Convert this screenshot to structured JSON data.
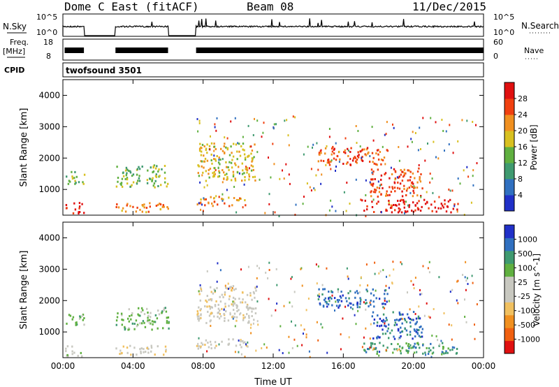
{
  "header": {
    "station": "Dome C East (fitACF)",
    "beam": "Beam 08",
    "date": "11/Dec/2015"
  },
  "strip_labels": {
    "nsky": "N.Sky",
    "nsky_ticks": [
      "10^5",
      "10^0"
    ],
    "nsearch": "N.Search",
    "nsearch_ticks": [
      "10^5",
      "10^0"
    ],
    "freq_title": "Freq.",
    "freq_unit": "[MHz]",
    "freq_ticks": [
      "18",
      "8"
    ],
    "nave": "Nave",
    "nave_ticks": [
      "60",
      "0"
    ],
    "cpid": "CPID",
    "cpid_value": "twofsound 3501"
  },
  "colors": {
    "power": [
      "#2030c8",
      "#3070c0",
      "#3f9a70",
      "#60b040",
      "#d8c020",
      "#f09020",
      "#f04010",
      "#e01010"
    ],
    "velocity": [
      "#e01010",
      "#f06010",
      "#f09020",
      "#f0c060",
      "#c8c8c0",
      "#c8c8c0",
      "#60b040",
      "#3f9a70",
      "#3070c0",
      "#2030c8"
    ]
  },
  "chart_data": [
    {
      "type": "heatmap",
      "name": "power",
      "xlabel": "Time UT",
      "ylabel": "Slant Range [km]",
      "colorbar_label": "Power [dB]",
      "colorbar_ticks": [
        "28",
        "24",
        "20",
        "16",
        "12",
        "8",
        "4"
      ],
      "xlim": [
        0,
        24
      ],
      "ylim": [
        180,
        4500
      ],
      "xticks": [
        "00:00",
        "04:00",
        "08:00",
        "12:00",
        "16:00",
        "20:00",
        "00:00"
      ],
      "yticks": [
        "1000",
        "2000",
        "3000",
        "4000"
      ],
      "data_gaps_hours": [
        [
          1.2,
          3.0
        ],
        [
          6.0,
          7.6
        ]
      ],
      "echo_regions": [
        {
          "t": [
            0.1,
            1.2
          ],
          "range": [
            250,
            600
          ],
          "level": "28"
        },
        {
          "t": [
            0.1,
            1.2
          ],
          "range": [
            1200,
            1600
          ],
          "level": "12"
        },
        {
          "t": [
            3.0,
            6.0
          ],
          "range": [
            300,
            600
          ],
          "level": "20"
        },
        {
          "t": [
            3.0,
            6.0
          ],
          "range": [
            1100,
            1800
          ],
          "level": "12"
        },
        {
          "t": [
            7.6,
            10.5
          ],
          "range": [
            500,
            800
          ],
          "level": "20"
        },
        {
          "t": [
            7.6,
            11.0
          ],
          "range": [
            1300,
            2500
          ],
          "level": "16"
        },
        {
          "t": [
            14.5,
            18.5
          ],
          "range": [
            1800,
            2400
          ],
          "level": "24"
        },
        {
          "t": [
            17.0,
            22.5
          ],
          "range": [
            300,
            700
          ],
          "level": "28"
        },
        {
          "t": [
            17.5,
            20.5
          ],
          "range": [
            800,
            1700
          ],
          "level": "24"
        }
      ]
    },
    {
      "type": "heatmap",
      "name": "velocity",
      "xlabel": "Time UT",
      "ylabel": "Slant Range [km]",
      "colorbar_label": "Velocity [m s^-1]",
      "colorbar_ticks": [
        "1000",
        "500",
        "100",
        "25",
        "-25",
        "-100",
        "-500",
        "-1000"
      ],
      "xlim": [
        0,
        24
      ],
      "ylim": [
        180,
        4500
      ],
      "xticks": [
        "00:00",
        "04:00",
        "08:00",
        "12:00",
        "16:00",
        "20:00",
        "00:00"
      ],
      "yticks": [
        "1000",
        "2000",
        "3000",
        "4000"
      ],
      "data_gaps_hours": [
        [
          1.2,
          3.0
        ],
        [
          6.0,
          7.6
        ]
      ],
      "echo_regions": [
        {
          "t": [
            0.1,
            1.2
          ],
          "range": [
            250,
            600
          ],
          "level": "-25"
        },
        {
          "t": [
            0.1,
            1.2
          ],
          "range": [
            1200,
            1600
          ],
          "level": "25"
        },
        {
          "t": [
            3.0,
            6.0
          ],
          "range": [
            300,
            600
          ],
          "level": "-100"
        },
        {
          "t": [
            3.0,
            6.0
          ],
          "range": [
            1100,
            1800
          ],
          "level": "25"
        },
        {
          "t": [
            7.6,
            10.5
          ],
          "range": [
            500,
            800
          ],
          "level": "-100"
        },
        {
          "t": [
            7.6,
            11.0
          ],
          "range": [
            1300,
            2500
          ],
          "level": "-100"
        },
        {
          "t": [
            14.5,
            18.5
          ],
          "range": [
            1800,
            2400
          ],
          "level": "500"
        },
        {
          "t": [
            17.0,
            22.5
          ],
          "range": [
            300,
            700
          ],
          "level": "100"
        },
        {
          "t": [
            17.5,
            20.5
          ],
          "range": [
            800,
            1700
          ],
          "level": "500"
        }
      ]
    }
  ]
}
